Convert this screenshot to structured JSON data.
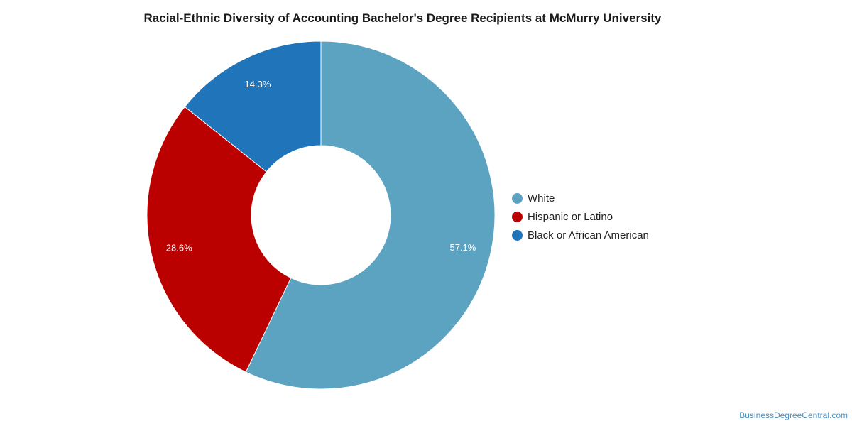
{
  "chart_data": {
    "type": "pie",
    "title": "Racial-Ethnic Diversity of Accounting Bachelor's Degree Recipients at McMurry University",
    "donut": true,
    "legend_position": "right",
    "slices": [
      {
        "label": "White",
        "value": 57.1,
        "display": "57.1%",
        "color": "#5ba3c0"
      },
      {
        "label": "Hispanic or Latino",
        "value": 28.6,
        "display": "28.6%",
        "color": "#bb0000"
      },
      {
        "label": "Black or African American",
        "value": 14.3,
        "display": "14.3%",
        "color": "#1f74ba"
      }
    ]
  },
  "footer": {
    "source": "BusinessDegreeCentral.com"
  }
}
